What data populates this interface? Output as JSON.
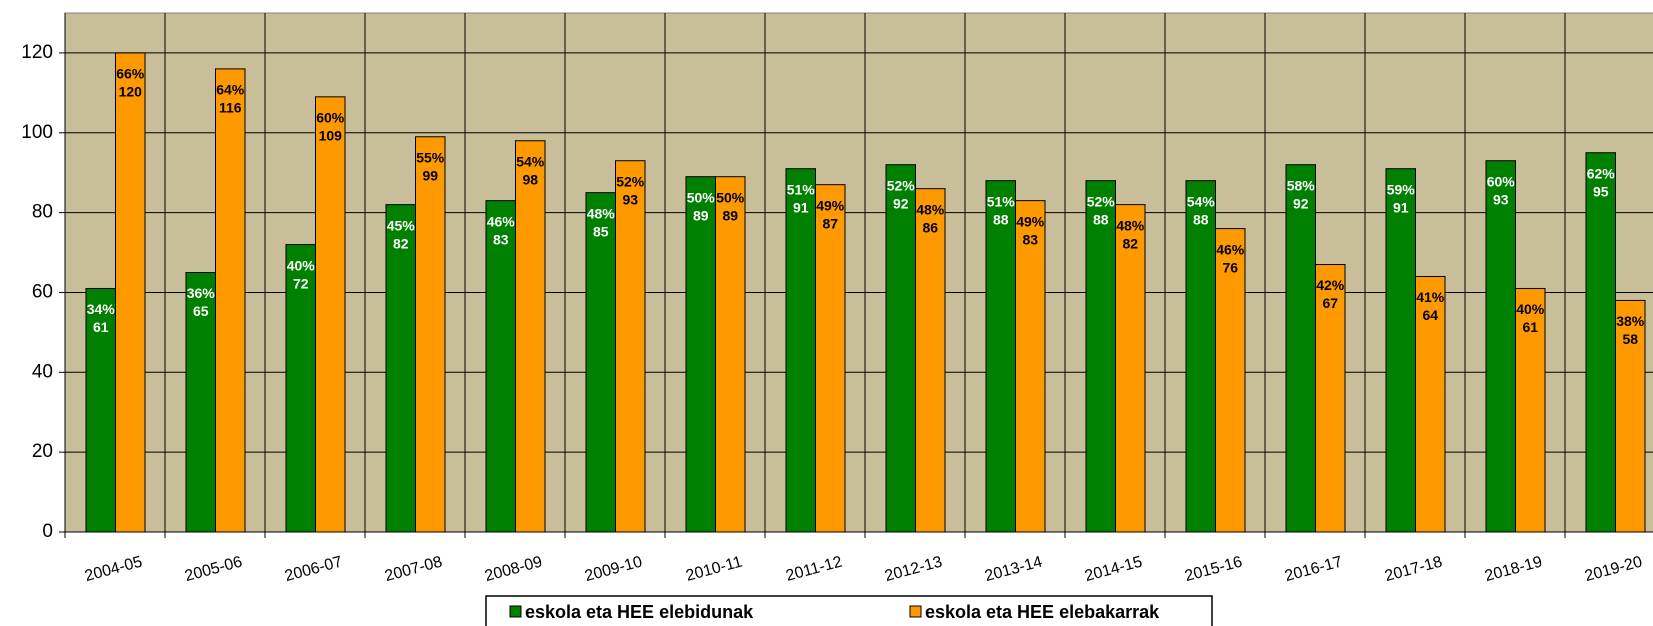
{
  "chart_data": {
    "type": "bar",
    "categories": [
      "2004-05",
      "2005-06",
      "2006-07",
      "2007-08",
      "2008-09",
      "2009-10",
      "2010-11",
      "2011-12",
      "2012-13",
      "2013-14",
      "2014-15",
      "2015-16",
      "2016-17",
      "2017-18",
      "2018-19",
      "2019-20"
    ],
    "series": [
      {
        "name": "eskola eta HEE elebidunak",
        "color": "#008000",
        "label_color": "#ffffff",
        "values": [
          61,
          65,
          72,
          82,
          83,
          85,
          89,
          91,
          92,
          88,
          88,
          88,
          92,
          91,
          93,
          95
        ],
        "share_labels": [
          "34%",
          "36%",
          "40%",
          "45%",
          "46%",
          "48%",
          "50%",
          "51%",
          "52%",
          "51%",
          "52%",
          "54%",
          "58%",
          "59%",
          "60%",
          "62%"
        ]
      },
      {
        "name": "eskola eta HEE elebakarrak",
        "color": "#ff9900",
        "label_color": "#000000",
        "values": [
          120,
          116,
          109,
          99,
          98,
          93,
          89,
          87,
          86,
          83,
          82,
          76,
          67,
          64,
          61,
          58
        ],
        "share_labels": [
          "66%",
          "64%",
          "60%",
          "55%",
          "54%",
          "52%",
          "50%",
          "49%",
          "48%",
          "49%",
          "48%",
          "46%",
          "42%",
          "41%",
          "40%",
          "38%"
        ]
      }
    ],
    "ylim": [
      0,
      130
    ],
    "yticks": [
      0,
      20,
      40,
      60,
      80,
      100,
      120
    ],
    "grid": true,
    "plot_background": "#c8bf9a"
  }
}
